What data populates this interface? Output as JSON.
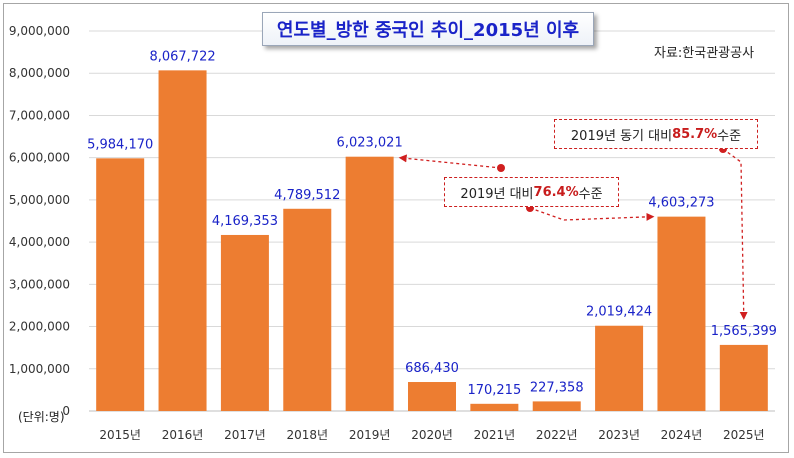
{
  "chart_data": {
    "type": "bar",
    "title": "연도별_방한 중국인 추이_2015년 이후",
    "source": "자료:한국관광공사",
    "unit": "(단위:명)",
    "categories": [
      "2015년",
      "2016년",
      "2017년",
      "2018년",
      "2019년",
      "2020년",
      "2021년",
      "2022년",
      "2023년",
      "2024년",
      "2025년"
    ],
    "values": [
      5984170,
      8067722,
      4169353,
      4789512,
      6023021,
      686430,
      170215,
      227358,
      2019424,
      4603273,
      1565399
    ],
    "value_labels": [
      "5,984,170",
      "8,067,722",
      "4,169,353",
      "4,789,512",
      "6,023,021",
      "686,430",
      "170,215",
      "227,358",
      "2,019,424",
      "4,603,273",
      "1,565,399"
    ],
    "yticks": [
      "0",
      "1,000,000",
      "2,000,000",
      "3,000,000",
      "4,000,000",
      "5,000,000",
      "6,000,000",
      "7,000,000",
      "8,000,000",
      "9,000,000"
    ],
    "ylim": [
      0,
      9000000
    ],
    "grid": true,
    "bar_color": "#ed7d31",
    "label_color": "#1a23c8",
    "annotations": [
      {
        "text_before": "2019년 대비 ",
        "pct": "76.4%",
        "text_after": " 수준",
        "from": "2019년",
        "to": "2024년"
      },
      {
        "text_before": "2019년 동기 대비 ",
        "pct": "85.7%",
        "text_after": " 수준",
        "to": "2025년"
      }
    ]
  }
}
